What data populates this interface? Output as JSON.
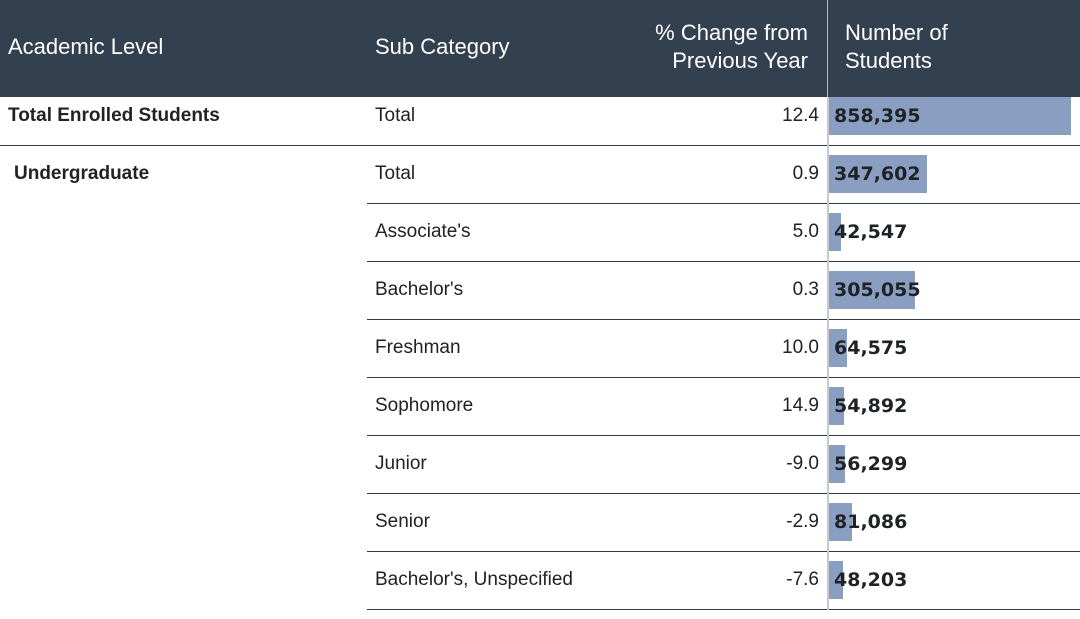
{
  "header": {
    "academic_level": "Academic Level",
    "sub_category": "Sub Category",
    "change_line1": "% Change from",
    "change_line2": "Previous Year",
    "students_line1": "Number of",
    "students_line2": "Students"
  },
  "colors": {
    "header_bg": "#33404f",
    "bar": "#8a9ec2"
  },
  "bar_max": 858395,
  "rows": [
    {
      "level": "Total Enrolled Students",
      "sub": "Total",
      "change": "12.4",
      "students": "858,395",
      "students_value": 858395
    },
    {
      "level": "Undergraduate",
      "sub": "Total",
      "change": "0.9",
      "students": "347,602",
      "students_value": 347602
    },
    {
      "level": "",
      "sub": "Associate's",
      "change": "5.0",
      "students": "42,547",
      "students_value": 42547
    },
    {
      "level": "",
      "sub": "Bachelor's",
      "change": "0.3",
      "students": "305,055",
      "students_value": 305055
    },
    {
      "level": "",
      "sub": "Freshman",
      "change": "10.0",
      "students": "64,575",
      "students_value": 64575
    },
    {
      "level": "",
      "sub": "Sophomore",
      "change": "14.9",
      "students": "54,892",
      "students_value": 54892
    },
    {
      "level": "",
      "sub": "Junior",
      "change": "-9.0",
      "students": "56,299",
      "students_value": 56299
    },
    {
      "level": "",
      "sub": "Senior",
      "change": "-2.9",
      "students": "81,086",
      "students_value": 81086
    },
    {
      "level": "",
      "sub": "Bachelor's, Unspecified",
      "change": "-7.6",
      "students": "48,203",
      "students_value": 48203
    }
  ]
}
